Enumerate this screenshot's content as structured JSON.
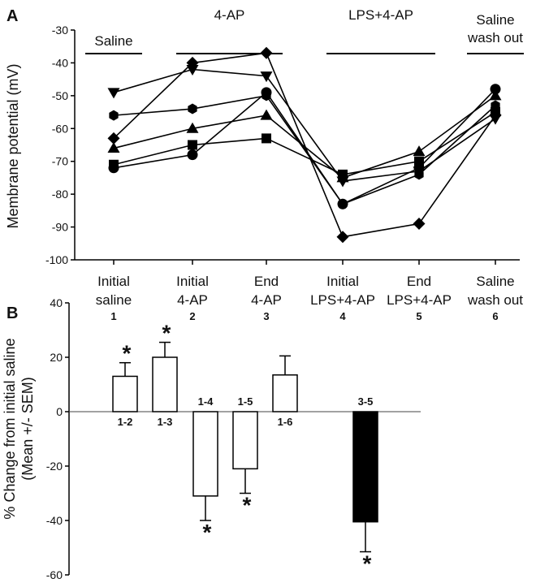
{
  "chart_data": [
    {
      "panel": "A",
      "type": "line",
      "ylabel": "Membrane potential (mV)",
      "ylim": [
        -100,
        -30
      ],
      "yticks": [
        -30,
        -40,
        -50,
        -60,
        -70,
        -80,
        -90,
        -100
      ],
      "categories": [
        {
          "line1": "Initial",
          "line2": "saline",
          "num": "1"
        },
        {
          "line1": "Initial",
          "line2": "4-AP",
          "num": "2"
        },
        {
          "line1": "End",
          "line2": "4-AP",
          "num": "3"
        },
        {
          "line1": "Initial",
          "line2": "LPS+4-AP",
          "num": "4"
        },
        {
          "line1": "End",
          "line2": "LPS+4-AP",
          "num": "5"
        },
        {
          "line1": "Saline",
          "line2": "wash out",
          "num": "6"
        }
      ],
      "condition_labels": [
        {
          "lines": [
            "Saline"
          ],
          "from": 1,
          "to": 1
        },
        {
          "lines": [
            "4-AP"
          ],
          "from": 2,
          "to": 3
        },
        {
          "lines": [
            "LPS+4-AP"
          ],
          "from": 4,
          "to": 5
        },
        {
          "lines": [
            "Saline",
            "wash out"
          ],
          "from": 6,
          "to": 6
        }
      ],
      "series": [
        {
          "marker": "triangle-down",
          "values": [
            -49,
            -42,
            -44,
            -76,
            -73,
            -57
          ]
        },
        {
          "marker": "diamond",
          "values": [
            -63,
            -40,
            -37,
            -93,
            -89,
            -56
          ]
        },
        {
          "marker": "hexagon",
          "values": [
            -56,
            -54,
            -50,
            -83,
            -74,
            -53
          ]
        },
        {
          "marker": "triangle-up",
          "values": [
            -66,
            -60,
            -56,
            -75,
            -67,
            -50
          ]
        },
        {
          "marker": "square",
          "values": [
            -71,
            -65,
            -63,
            -74,
            -70,
            -55
          ]
        },
        {
          "marker": "circle",
          "values": [
            -72,
            -68,
            -49,
            -83,
            -72,
            -48
          ]
        }
      ]
    },
    {
      "panel": "B",
      "type": "bar",
      "ylabel_line1": "% Change from initial saline",
      "ylabel_line2": "(Mean +/- SEM)",
      "ylim": [
        -60,
        40
      ],
      "yticks": [
        40,
        20,
        0,
        -20,
        -40,
        -60
      ],
      "bars": [
        {
          "label": "1-2",
          "value": 13,
          "sem": 5,
          "significant": true,
          "fill": "#ffffff"
        },
        {
          "label": "1-3",
          "value": 20,
          "sem": 5.5,
          "significant": true,
          "fill": "#ffffff"
        },
        {
          "label": "1-4",
          "value": -31,
          "sem": 9,
          "significant": true,
          "fill": "#ffffff"
        },
        {
          "label": "1-5",
          "value": -21,
          "sem": 9,
          "significant": true,
          "fill": "#ffffff"
        },
        {
          "label": "1-6",
          "value": 13.5,
          "sem": 7,
          "significant": false,
          "fill": "#ffffff"
        },
        {
          "label": "3-5",
          "value": -40.5,
          "sem": 11,
          "significant": true,
          "fill": "#000000"
        }
      ],
      "significance_marker": "*"
    }
  ]
}
